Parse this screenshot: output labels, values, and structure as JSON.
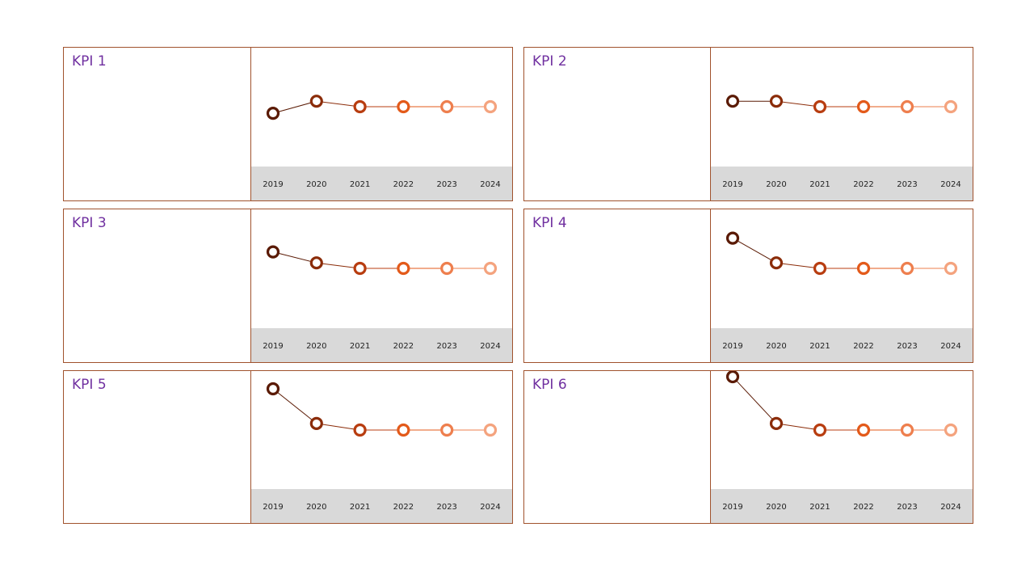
{
  "colors": {
    "border": "#a0522d",
    "title": "#7030a0",
    "axis_band": "#d9d9d9",
    "point_colors": [
      "#5a1a04",
      "#8b2c09",
      "#b83d10",
      "#e35a1a",
      "#ee7f4e",
      "#f4a37e"
    ]
  },
  "kpis": [
    {
      "title": "KPI 1"
    },
    {
      "title": "KPI 2"
    },
    {
      "title": "KPI 3"
    },
    {
      "title": "KPI 4"
    },
    {
      "title": "KPI 5"
    },
    {
      "title": "KPI 6"
    }
  ],
  "chart_data": [
    {
      "type": "line",
      "title": "KPI 1",
      "x": [
        "2019",
        "2020",
        "2021",
        "2022",
        "2023",
        "2024"
      ],
      "series": [
        {
          "values": [
            -0.12,
            0.1,
            0.0,
            0.0,
            0.0,
            0.0
          ]
        }
      ],
      "ylim": [
        -1,
        1.15
      ],
      "grid": false,
      "legend": "none"
    },
    {
      "type": "line",
      "title": "KPI 2",
      "x": [
        "2019",
        "2020",
        "2021",
        "2022",
        "2023",
        "2024"
      ],
      "series": [
        {
          "values": [
            0.1,
            0.1,
            0.0,
            0.0,
            0.0,
            0.0
          ]
        }
      ],
      "ylim": [
        -1,
        1.15
      ],
      "grid": false,
      "legend": "none"
    },
    {
      "type": "line",
      "title": "KPI 3",
      "x": [
        "2019",
        "2020",
        "2021",
        "2022",
        "2023",
        "2024"
      ],
      "series": [
        {
          "values": [
            0.3,
            0.1,
            0.0,
            0.0,
            0.0,
            0.0
          ]
        }
      ],
      "ylim": [
        -1,
        1.15
      ],
      "grid": false,
      "legend": "none"
    },
    {
      "type": "line",
      "title": "KPI 4",
      "x": [
        "2019",
        "2020",
        "2021",
        "2022",
        "2023",
        "2024"
      ],
      "series": [
        {
          "values": [
            0.55,
            0.1,
            0.0,
            0.0,
            0.0,
            0.0
          ]
        }
      ],
      "ylim": [
        -1,
        1.15
      ],
      "grid": false,
      "legend": "none"
    },
    {
      "type": "line",
      "title": "KPI 5",
      "x": [
        "2019",
        "2020",
        "2021",
        "2022",
        "2023",
        "2024"
      ],
      "series": [
        {
          "values": [
            0.75,
            0.12,
            0.0,
            0.0,
            0.0,
            0.0
          ]
        }
      ],
      "ylim": [
        -1,
        1.15
      ],
      "grid": false,
      "legend": "none"
    },
    {
      "type": "line",
      "title": "KPI 6",
      "x": [
        "2019",
        "2020",
        "2021",
        "2022",
        "2023",
        "2024"
      ],
      "series": [
        {
          "values": [
            0.97,
            0.12,
            0.0,
            0.0,
            0.0,
            0.0
          ]
        }
      ],
      "ylim": [
        -1,
        1.15
      ],
      "grid": false,
      "legend": "none"
    }
  ]
}
